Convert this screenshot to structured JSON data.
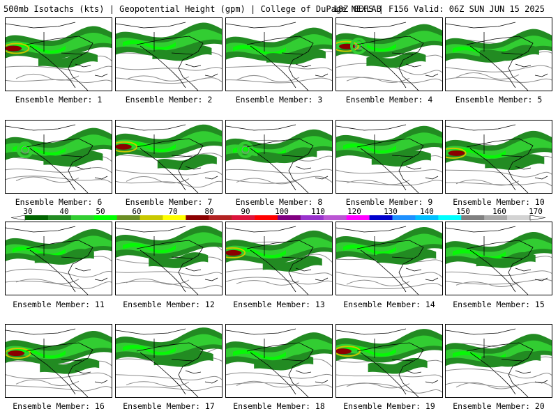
{
  "header": {
    "title_left": "500mb Isotachs (kts) | Geopotential Height (gpm) | College of DuPage NEXLAB",
    "title_right": "18Z GEFS | F156 Valid: 06Z SUN JUN 15 2025"
  },
  "panels": [
    {
      "label": "Ensemble Member: 1"
    },
    {
      "label": "Ensemble Member: 2"
    },
    {
      "label": "Ensemble Member: 3"
    },
    {
      "label": "Ensemble Member: 4"
    },
    {
      "label": "Ensemble Member: 5"
    },
    {
      "label": "Ensemble Member: 6"
    },
    {
      "label": "Ensemble Member: 7"
    },
    {
      "label": "Ensemble Member: 8"
    },
    {
      "label": "Ensemble Member: 9"
    },
    {
      "label": "Ensemble Member: 10"
    },
    {
      "label": "Ensemble Member: 11"
    },
    {
      "label": "Ensemble Member: 12"
    },
    {
      "label": "Ensemble Member: 13"
    },
    {
      "label": "Ensemble Member: 14"
    },
    {
      "label": "Ensemble Member: 15"
    },
    {
      "label": "Ensemble Member: 16"
    },
    {
      "label": "Ensemble Member: 17"
    },
    {
      "label": "Ensemble Member: 18"
    },
    {
      "label": "Ensemble Member: 19"
    },
    {
      "label": "Ensemble Member: 20"
    }
  ],
  "colorbar": {
    "ticks": [
      "30",
      "40",
      "50",
      "60",
      "70",
      "80",
      "90",
      "100",
      "110",
      "120",
      "130",
      "140",
      "150",
      "160",
      "170"
    ],
    "colors": [
      "#006400",
      "#228b22",
      "#32cd32",
      "#00ff00",
      "#6b8e23",
      "#c8c800",
      "#ffff00",
      "#8b0000",
      "#b22222",
      "#dc143c",
      "#ff0000",
      "#800080",
      "#9932cc",
      "#ba55d3",
      "#ff00ff",
      "#0000cd",
      "#1e90ff",
      "#00bfff",
      "#00ffff",
      "#808080",
      "#a9a9a9",
      "#d3d3d3"
    ]
  }
}
